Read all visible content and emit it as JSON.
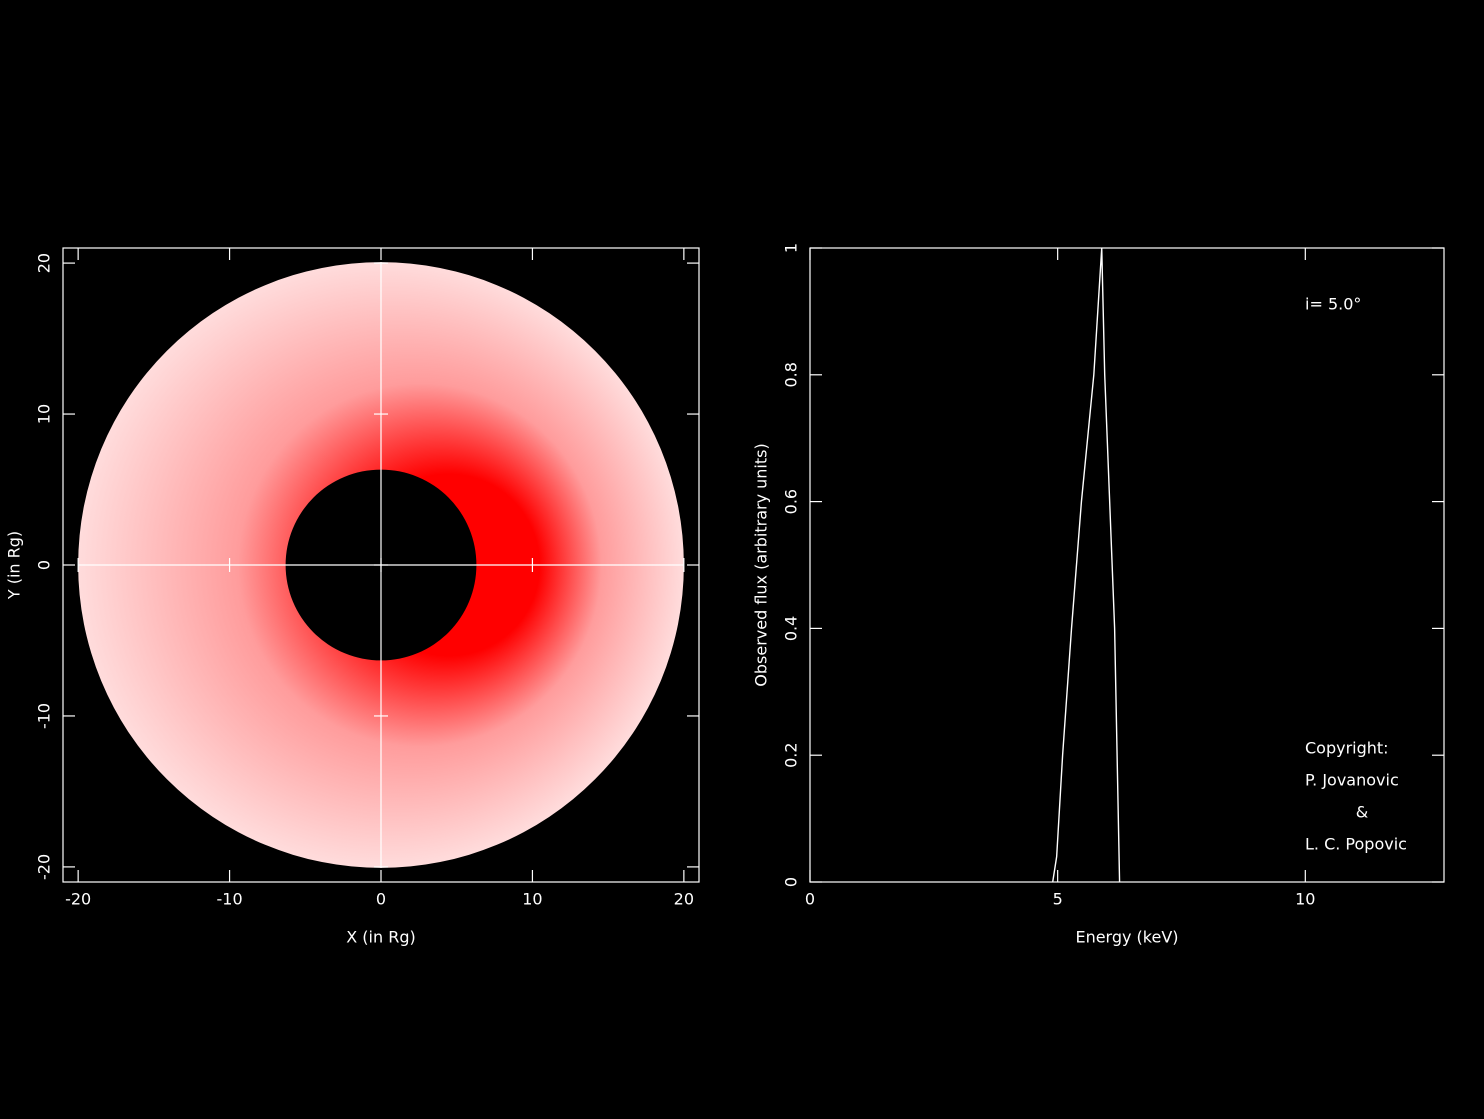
{
  "chart_data": [
    {
      "type": "image",
      "xlabel": "X (in Rg)",
      "ylabel": "Y (in Rg)",
      "xlim": [
        -21,
        21
      ],
      "ylim": [
        -21,
        21
      ],
      "xticks": [
        -20,
        -10,
        0,
        10,
        20
      ],
      "yticks": [
        -20,
        -10,
        0,
        10,
        20
      ],
      "inner_radius": 6.3,
      "outer_radius": 20,
      "colors": [
        "#ff0000",
        "#ffdcdc"
      ]
    },
    {
      "type": "line",
      "xlabel": "Energy (keV)",
      "ylabel": "Observed flux (arbitrary units)",
      "x": [
        4.9,
        4.98,
        5.1,
        5.28,
        5.48,
        5.73,
        5.89,
        5.95,
        6.05,
        6.15,
        6.25
      ],
      "values": [
        0,
        0.04,
        0.2,
        0.4,
        0.6,
        0.8,
        1,
        0.8,
        0.6,
        0.4,
        0
      ],
      "color": "#ffffff",
      "xlim": [
        0,
        12.8
      ],
      "ylim": [
        0,
        1
      ],
      "xticks": [
        0,
        5,
        10
      ],
      "yticks": [
        0,
        0.2,
        0.4,
        0.6,
        0.8,
        1
      ],
      "annotations": [
        "i= 5.0°",
        "Copyright:",
        "P. Jovanovic",
        "&",
        "L. C. Popovic"
      ]
    }
  ]
}
